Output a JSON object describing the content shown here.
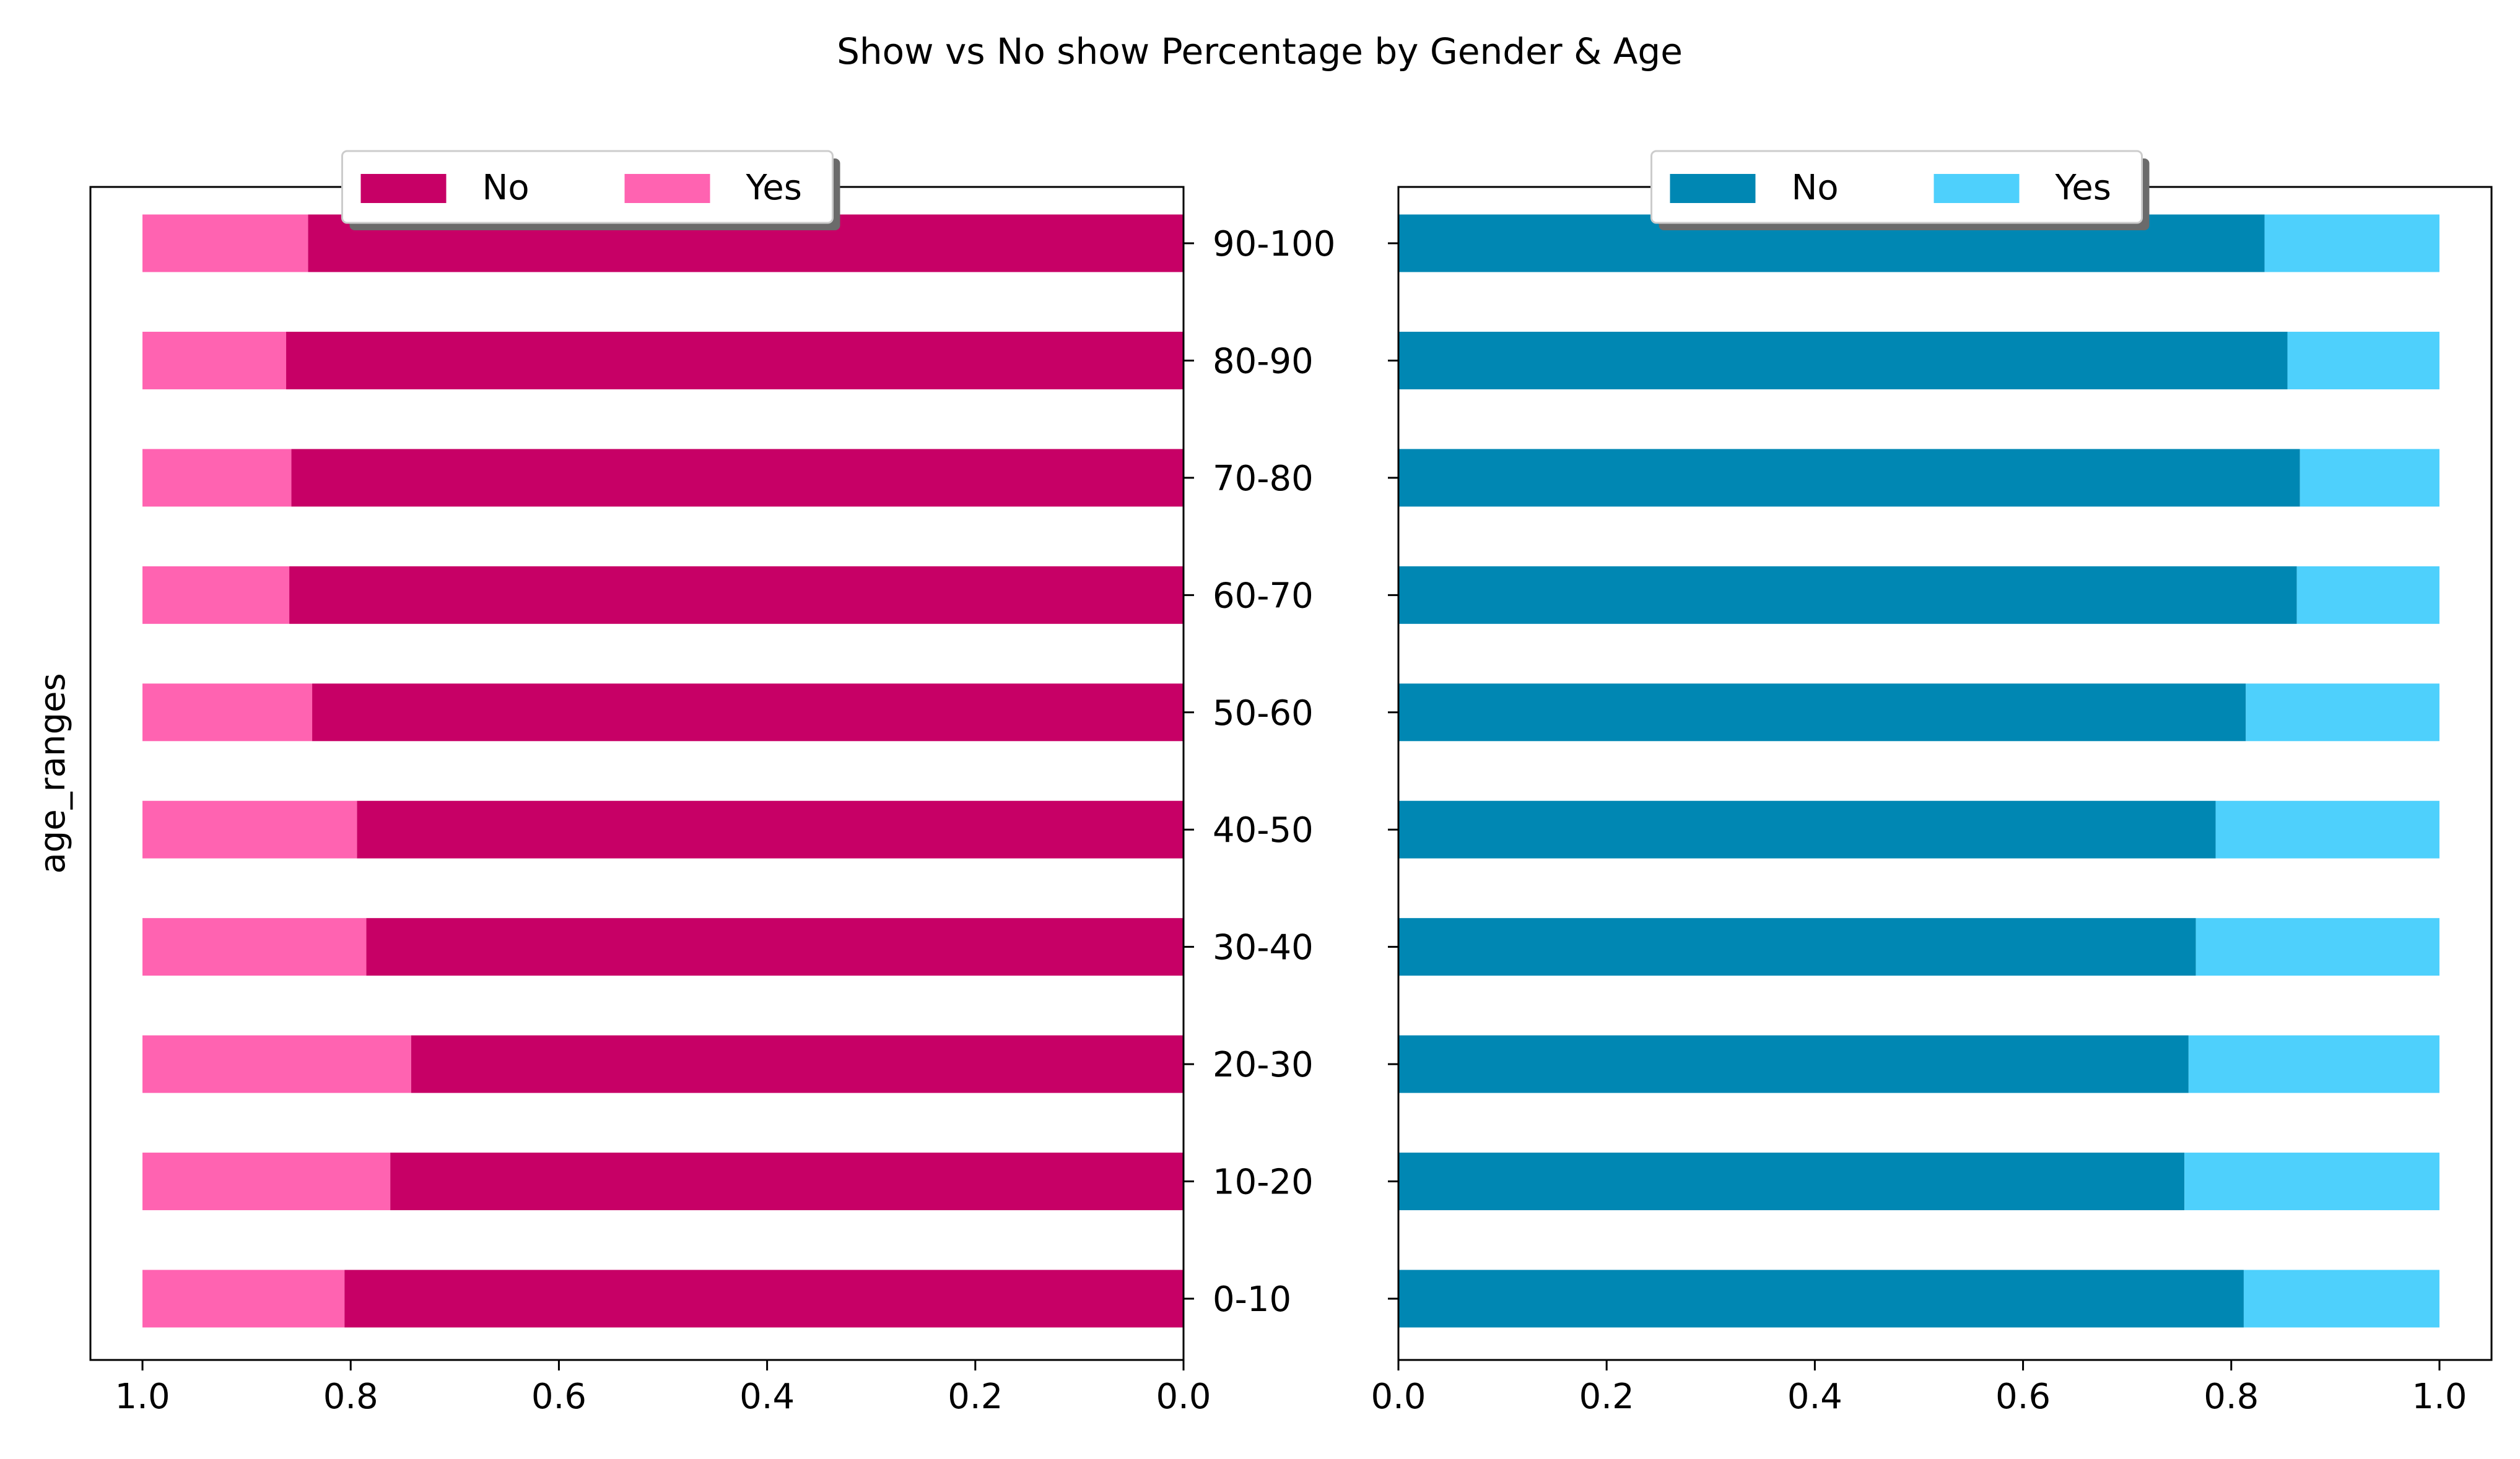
{
  "figure": {
    "title": "Show vs No show Percentage by Gender & Age"
  },
  "colors": {
    "left_no": "#c70066",
    "left_yes": "#ff63b1",
    "right_no": "#0087b3",
    "right_yes": "#4ed0fc",
    "axis": "#000000"
  },
  "chart_data": [
    {
      "type": "bar",
      "orientation": "horizontal",
      "stacked": true,
      "x_inverted": true,
      "ylabel": "age_ranges",
      "xlim": [
        0,
        1.05
      ],
      "xticks": [
        "0.0",
        "0.2",
        "0.4",
        "0.6",
        "0.8",
        "1.0"
      ],
      "categories": [
        "0-10",
        "10-20",
        "20-30",
        "30-40",
        "40-50",
        "50-60",
        "60-70",
        "70-80",
        "80-90",
        "90-100"
      ],
      "series": [
        {
          "name": "No",
          "values": [
            0.806,
            0.762,
            0.742,
            0.785,
            0.794,
            0.837,
            0.859,
            0.857,
            0.862,
            0.841
          ]
        },
        {
          "name": "Yes",
          "values": [
            0.194,
            0.238,
            0.258,
            0.215,
            0.206,
            0.163,
            0.141,
            0.143,
            0.138,
            0.159
          ]
        }
      ],
      "legend": {
        "placement": "top-center",
        "entries": [
          "No",
          "Yes"
        ]
      },
      "grid": false
    },
    {
      "type": "bar",
      "orientation": "horizontal",
      "stacked": true,
      "x_inverted": false,
      "ylabel": "",
      "xlim": [
        0,
        1.05
      ],
      "xticks": [
        "0.0",
        "0.2",
        "0.4",
        "0.6",
        "0.8",
        "1.0"
      ],
      "categories": [
        "0-10",
        "10-20",
        "20-30",
        "30-40",
        "40-50",
        "50-60",
        "60-70",
        "70-80",
        "80-90",
        "90-100"
      ],
      "series": [
        {
          "name": "No",
          "values": [
            0.812,
            0.755,
            0.759,
            0.766,
            0.785,
            0.814,
            0.863,
            0.866,
            0.854,
            0.832
          ]
        },
        {
          "name": "Yes",
          "values": [
            0.188,
            0.245,
            0.241,
            0.234,
            0.215,
            0.186,
            0.137,
            0.134,
            0.146,
            0.168
          ]
        }
      ],
      "legend": {
        "placement": "top-center",
        "entries": [
          "No",
          "Yes"
        ]
      },
      "grid": false
    }
  ]
}
